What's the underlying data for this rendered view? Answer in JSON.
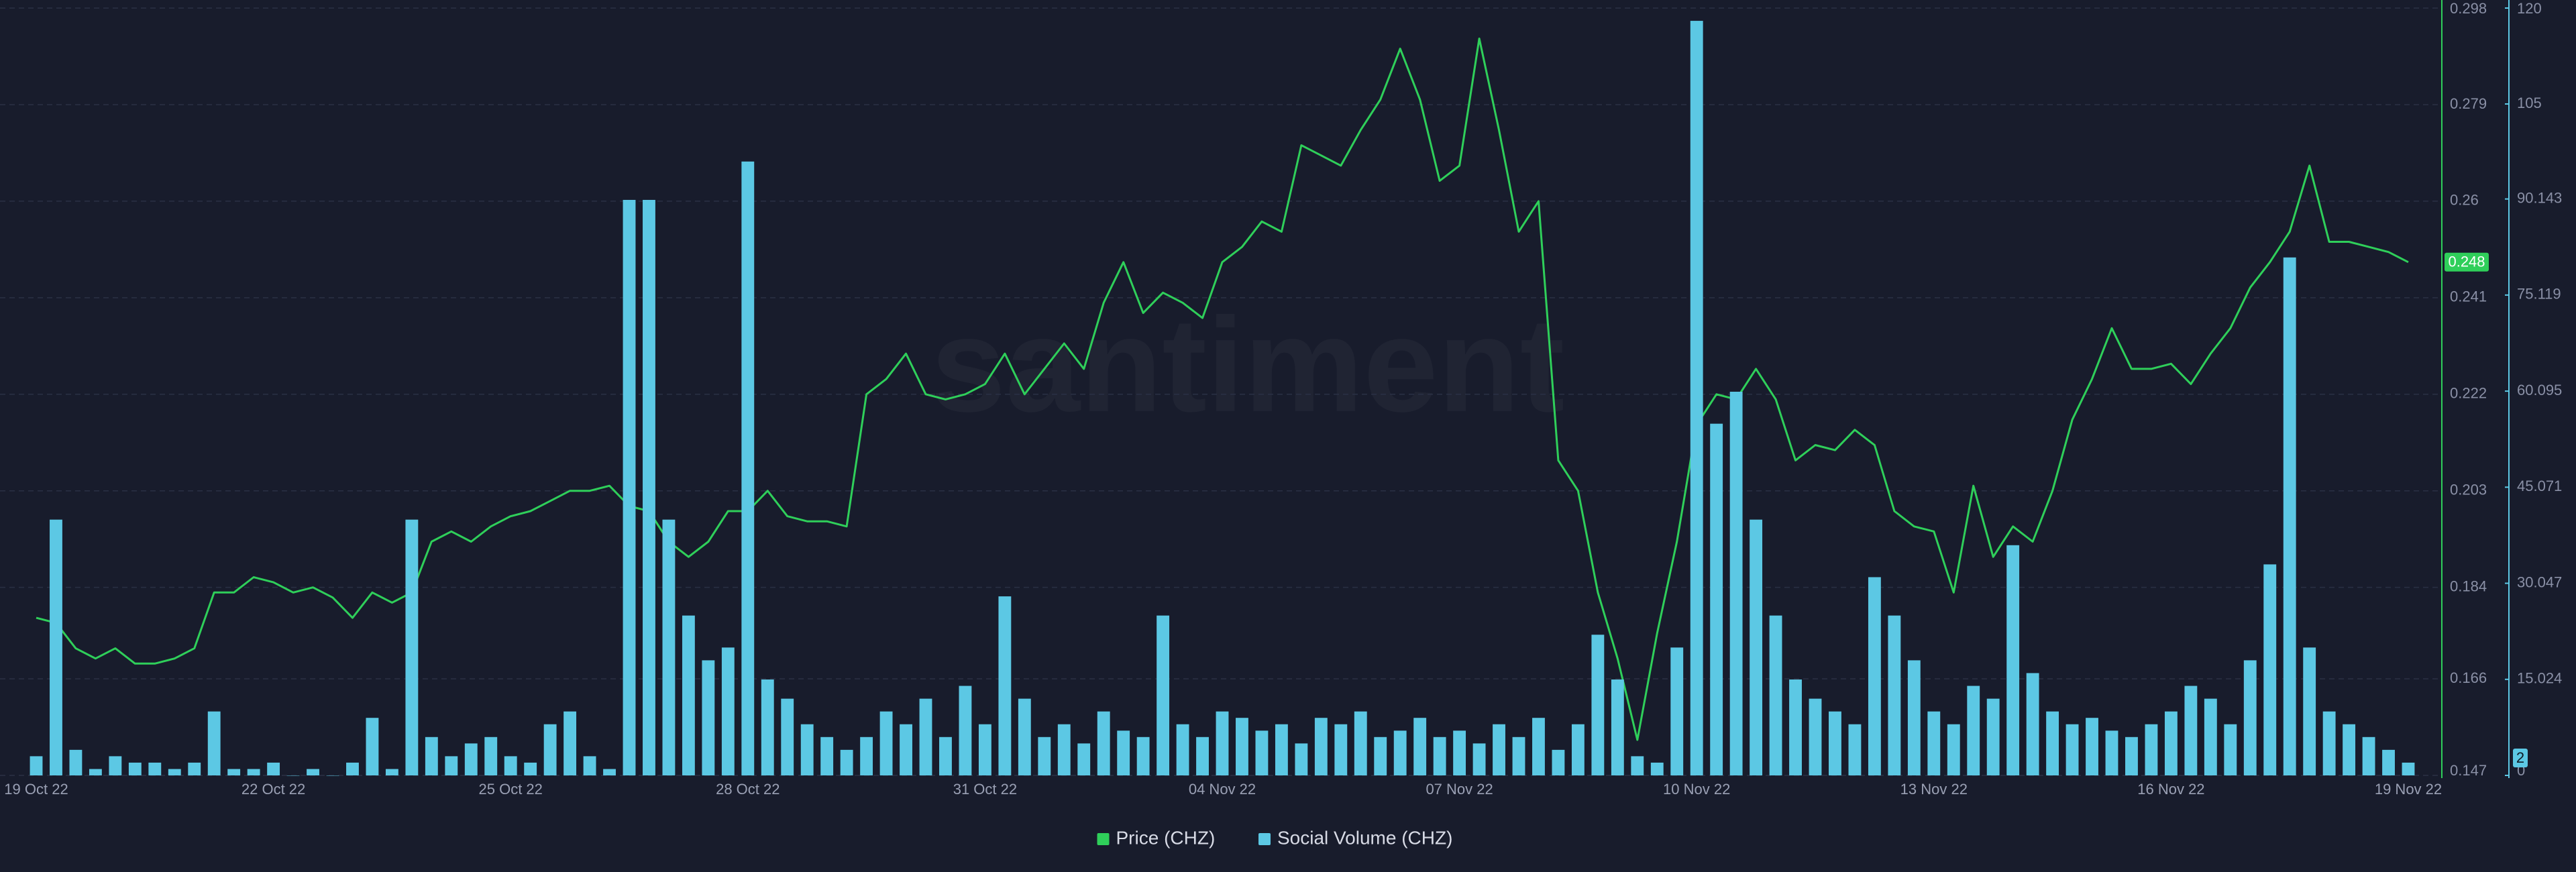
{
  "chart_data": {
    "type": "line",
    "watermark": "santiment",
    "categories": [
      "19 Oct 22",
      null,
      null,
      null,
      null,
      null,
      null,
      null,
      null,
      null,
      null,
      null,
      "22 Oct 22",
      null,
      null,
      null,
      null,
      null,
      null,
      null,
      null,
      null,
      null,
      null,
      "25 Oct 22",
      null,
      null,
      null,
      null,
      null,
      null,
      null,
      null,
      null,
      null,
      null,
      "28 Oct 22",
      null,
      null,
      null,
      null,
      null,
      null,
      null,
      null,
      null,
      null,
      null,
      "31 Oct 22",
      null,
      null,
      null,
      null,
      null,
      null,
      null,
      null,
      null,
      null,
      null,
      "04 Nov 22",
      null,
      null,
      null,
      null,
      null,
      null,
      null,
      null,
      null,
      null,
      null,
      "07 Nov 22",
      null,
      null,
      null,
      null,
      null,
      null,
      null,
      null,
      null,
      null,
      null,
      "10 Nov 22",
      null,
      null,
      null,
      null,
      null,
      null,
      null,
      null,
      null,
      null,
      null,
      "13 Nov 22",
      null,
      null,
      null,
      null,
      null,
      null,
      null,
      null,
      null,
      null,
      null,
      "16 Nov 22",
      null,
      null,
      null,
      null,
      null,
      null,
      null,
      null,
      null,
      null,
      null,
      "19 Nov 22"
    ],
    "series": [
      {
        "name": "Price (CHZ)",
        "color": "#2fcf5a",
        "type": "line",
        "values": [
          0.178,
          0.177,
          0.172,
          0.17,
          0.172,
          0.169,
          0.169,
          0.17,
          0.172,
          0.183,
          0.183,
          0.186,
          0.185,
          0.183,
          0.184,
          0.182,
          0.178,
          0.183,
          0.181,
          0.183,
          0.193,
          0.195,
          0.193,
          0.196,
          0.198,
          0.199,
          0.201,
          0.203,
          0.203,
          0.204,
          0.2,
          0.199,
          0.193,
          0.19,
          0.193,
          0.199,
          0.199,
          0.203,
          0.198,
          0.197,
          0.197,
          0.196,
          0.222,
          0.225,
          0.23,
          0.222,
          0.221,
          0.222,
          0.224,
          0.23,
          0.222,
          0.227,
          0.232,
          0.227,
          0.24,
          0.248,
          0.238,
          0.242,
          0.24,
          0.237,
          0.248,
          0.251,
          0.256,
          0.254,
          0.271,
          0.269,
          0.267,
          0.274,
          0.28,
          0.29,
          0.28,
          0.264,
          0.267,
          0.292,
          0.274,
          0.254,
          0.26,
          0.209,
          0.203,
          0.183,
          0.17,
          0.154,
          0.175,
          0.193,
          0.216,
          0.222,
          0.221,
          0.227,
          0.221,
          0.209,
          0.212,
          0.211,
          0.215,
          0.212,
          0.199,
          0.196,
          0.195,
          0.183,
          0.204,
          0.19,
          0.196,
          0.193,
          0.203,
          0.217,
          0.225,
          0.235,
          0.227,
          0.227,
          0.228,
          0.224,
          0.23,
          0.235,
          0.243,
          0.248,
          0.254,
          0.267,
          0.252,
          0.252,
          0.251,
          0.25,
          0.248
        ]
      },
      {
        "name": "Social Volume (CHZ)",
        "color": "#5cc8e4",
        "type": "bar",
        "axis": "y2",
        "values": [
          3,
          40,
          4,
          1,
          3,
          2,
          2,
          1,
          2,
          10,
          1,
          1,
          2,
          0,
          1,
          0,
          2,
          9,
          1,
          40,
          6,
          3,
          5,
          6,
          3,
          2,
          8,
          10,
          3,
          1,
          90,
          90,
          40,
          25,
          18,
          20,
          96,
          15,
          12,
          8,
          6,
          4,
          6,
          10,
          8,
          12,
          6,
          14,
          8,
          28,
          12,
          6,
          8,
          5,
          10,
          7,
          6,
          25,
          8,
          6,
          10,
          9,
          7,
          8,
          5,
          9,
          8,
          10,
          6,
          7,
          9,
          6,
          7,
          5,
          8,
          6,
          9,
          4,
          8,
          22,
          15,
          3,
          2,
          20,
          118,
          55,
          60,
          40,
          25,
          15,
          12,
          10,
          8,
          31,
          25,
          18,
          10,
          8,
          14,
          12,
          36,
          16,
          10,
          8,
          9,
          7,
          6,
          8,
          10,
          14,
          12,
          8,
          18,
          33,
          81,
          20,
          10,
          8,
          6,
          4,
          2
        ]
      }
    ],
    "ylim": [
      0.147,
      0.298
    ],
    "yticks": [
      0.147,
      0.166,
      0.184,
      0.203,
      0.222,
      0.241,
      0.26,
      0.279,
      0.298
    ],
    "y2lim": [
      0,
      120
    ],
    "y2ticks": [
      0,
      15.024,
      30.047,
      45.071,
      60.095,
      75.119,
      90.143,
      105,
      120
    ],
    "grid": true,
    "legend": "bottom"
  }
}
